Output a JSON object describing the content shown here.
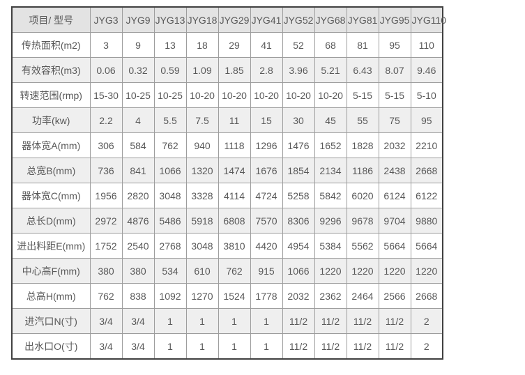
{
  "colors": {
    "page_background": "#ffffff",
    "header_row_background": "#e3e3e3",
    "stripe_row_background": "#efefef",
    "inner_border": "#9d9d9d",
    "outer_border": "#404040",
    "text": "#595959"
  },
  "table": {
    "header": [
      "项目/ 型号",
      "JYG3",
      "JYG9",
      "JYG13",
      "JYG18",
      "JYG29",
      "JYG41",
      "JYG52",
      "JYG68",
      "JYG81",
      "JYG95",
      "JYG110"
    ],
    "rows": [
      {
        "label": "传热面积(m2)",
        "values": [
          "3",
          "9",
          "13",
          "18",
          "29",
          "41",
          "52",
          "68",
          "81",
          "95",
          "110"
        ]
      },
      {
        "label": "有效容积(m3)",
        "values": [
          "0.06",
          "0.32",
          "0.59",
          "1.09",
          "1.85",
          "2.8",
          "3.96",
          "5.21",
          "6.43",
          "8.07",
          "9.46"
        ]
      },
      {
        "label": "转速范围(rmp)",
        "values": [
          "15-30",
          "10-25",
          "10-25",
          "10-20",
          "10-20",
          "10-20",
          "10-20",
          "10-20",
          "5-15",
          "5-15",
          "5-10"
        ]
      },
      {
        "label": "功率(kw)",
        "values": [
          "2.2",
          "4",
          "5.5",
          "7.5",
          "11",
          "15",
          "30",
          "45",
          "55",
          "75",
          "95"
        ]
      },
      {
        "label": "器体宽A(mm)",
        "values": [
          "306",
          "584",
          "762",
          "940",
          "1118",
          "1296",
          "1476",
          "1652",
          "1828",
          "2032",
          "2210"
        ]
      },
      {
        "label": "总宽B(mm)",
        "values": [
          "736",
          "841",
          "1066",
          "1320",
          "1474",
          "1676",
          "1854",
          "2134",
          "1186",
          "2438",
          "2668"
        ]
      },
      {
        "label": "器体宽C(mm)",
        "values": [
          "1956",
          "2820",
          "3048",
          "3328",
          "4114",
          "4724",
          "5258",
          "5842",
          "6020",
          "6124",
          "6122"
        ]
      },
      {
        "label": "总长D(mm)",
        "values": [
          "2972",
          "4876",
          "5486",
          "5918",
          "6808",
          "7570",
          "8306",
          "9296",
          "9678",
          "9704",
          "9880"
        ]
      },
      {
        "label": "进出料距E(mm)",
        "values": [
          "1752",
          "2540",
          "2768",
          "3048",
          "3810",
          "4420",
          "4954",
          "5384",
          "5562",
          "5664",
          "5664"
        ]
      },
      {
        "label": "中心高F(mm)",
        "values": [
          "380",
          "380",
          "534",
          "610",
          "762",
          "915",
          "1066",
          "1220",
          "1220",
          "1220",
          "1220"
        ]
      },
      {
        "label": "总高H(mm)",
        "values": [
          "762",
          "838",
          "1092",
          "1270",
          "1524",
          "1778",
          "2032",
          "2362",
          "2464",
          "2566",
          "2668"
        ]
      },
      {
        "label": "进汽口N(寸)",
        "values": [
          "3/4",
          "3/4",
          "1",
          "1",
          "1",
          "1",
          "11/2",
          "11/2",
          "11/2",
          "11/2",
          "2"
        ]
      },
      {
        "label": "出水口O(寸)",
        "values": [
          "3/4",
          "3/4",
          "1",
          "1",
          "1",
          "1",
          "11/2",
          "11/2",
          "11/2",
          "11/2",
          "2"
        ]
      }
    ]
  }
}
